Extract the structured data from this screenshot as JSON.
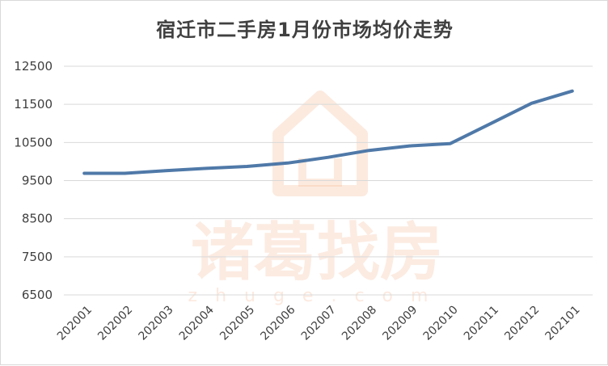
{
  "chart_data": {
    "type": "line",
    "title": "宿迁市二手房1月份市场均价走势",
    "xlabel": "",
    "ylabel": "",
    "categories": [
      "202001",
      "202002",
      "202003",
      "202004",
      "202005",
      "202006",
      "202007",
      "202008",
      "202009",
      "202010",
      "202011",
      "202012",
      "202101"
    ],
    "series": [
      {
        "values": [
          9690,
          9690,
          9760,
          9820,
          9870,
          9960,
          10110,
          10290,
          10410,
          10470,
          11000,
          11530,
          11850
        ],
        "color": "#4f79a8"
      }
    ],
    "yticks": [
      "12500",
      "11500",
      "10500",
      "9500",
      "8500",
      "7500",
      "6500"
    ],
    "ylim": [
      6500,
      12500
    ],
    "grid": true,
    "legend": "none"
  },
  "watermark": {
    "icon": "house-logo-icon",
    "text": "诸葛找房",
    "subtext": "zhuge.com"
  }
}
